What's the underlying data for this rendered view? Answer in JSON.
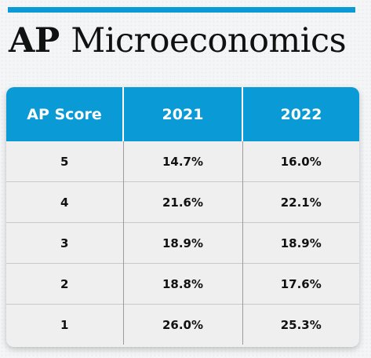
{
  "header": {
    "title_bold": "AP",
    "title_rest": "Microeconomics"
  },
  "colors": {
    "accent": "#0a9ad6",
    "table_background": "#efefef",
    "text": "#111111"
  },
  "table": {
    "columns": [
      "AP Score",
      "2021",
      "2022"
    ],
    "rows": [
      [
        "5",
        "14.7%",
        "16.0%"
      ],
      [
        "4",
        "21.6%",
        "22.1%"
      ],
      [
        "3",
        "18.9%",
        "18.9%"
      ],
      [
        "2",
        "18.8%",
        "17.6%"
      ],
      [
        "1",
        "26.0%",
        "25.3%"
      ]
    ]
  }
}
